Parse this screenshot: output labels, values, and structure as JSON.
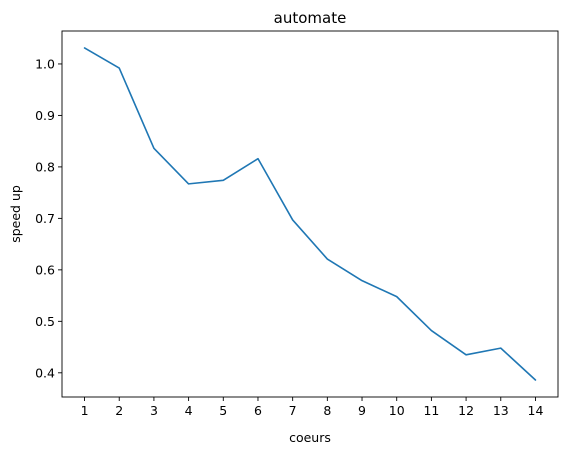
{
  "chart_data": {
    "type": "line",
    "title": "automate",
    "xlabel": "coeurs",
    "ylabel": "speed up",
    "x": [
      1,
      2,
      3,
      4,
      5,
      6,
      7,
      8,
      9,
      10,
      11,
      12,
      13,
      14
    ],
    "series": [
      {
        "values": [
          1.031,
          0.992,
          0.836,
          0.767,
          0.774,
          0.816,
          0.697,
          0.621,
          0.579,
          0.548,
          0.482,
          0.435,
          0.448,
          0.386
        ],
        "color": "#1f77b4"
      }
    ],
    "xlim": [
      0.35,
      14.65
    ],
    "ylim": [
      0.353,
      1.064
    ],
    "xticks": [
      1,
      2,
      3,
      4,
      5,
      6,
      7,
      8,
      9,
      10,
      11,
      12,
      13,
      14
    ],
    "yticks": [
      0.4,
      0.5,
      0.6,
      0.7,
      0.8,
      0.9,
      1.0
    ],
    "ytick_labels": [
      "0.4",
      "0.5",
      "0.6",
      "0.7",
      "0.8",
      "0.9",
      "1.0"
    ],
    "grid": false,
    "legend": "none"
  }
}
